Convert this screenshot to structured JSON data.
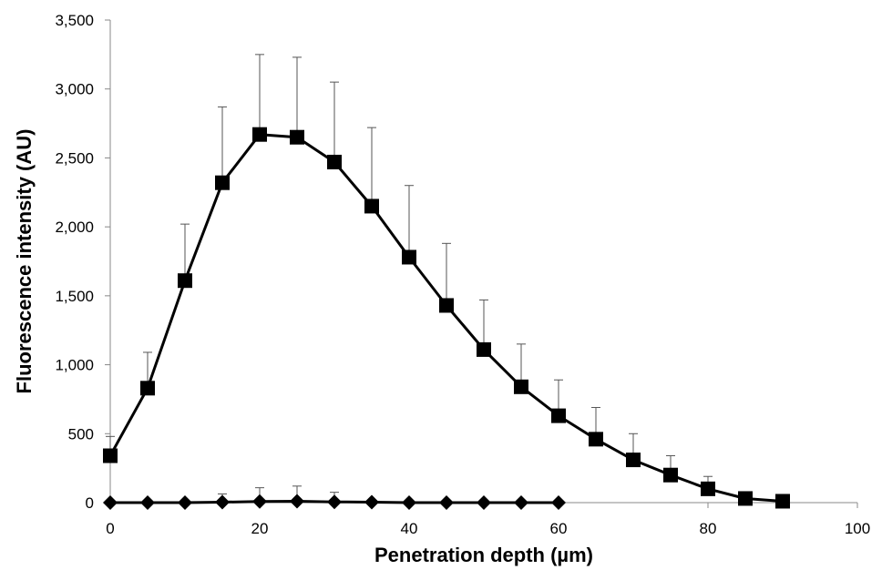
{
  "chart_data": {
    "type": "line",
    "title": "",
    "xlabel": "Penetration depth (µm)",
    "ylabel": "Fluorescence intensity (AU)",
    "xlim": [
      0,
      100
    ],
    "ylim": [
      0,
      3500
    ],
    "x_ticks": [
      0,
      20,
      40,
      60,
      80,
      100
    ],
    "x_tick_labels": [
      "0",
      "20",
      "40",
      "60",
      "80",
      "100"
    ],
    "y_ticks": [
      0,
      500,
      1000,
      1500,
      2000,
      2500,
      3000,
      3500
    ],
    "y_tick_labels": [
      "0",
      "500",
      "1,000",
      "1,500",
      "2,000",
      "2,500",
      "3,000",
      "3,500"
    ],
    "grid": false,
    "legend": "none",
    "series": [
      {
        "marker": "square",
        "color": "#000000",
        "x": [
          0,
          5,
          10,
          15,
          20,
          25,
          30,
          35,
          40,
          45,
          50,
          55,
          60,
          65,
          70,
          75,
          80,
          85,
          90
        ],
        "y": [
          340,
          830,
          1610,
          2320,
          2670,
          2650,
          2470,
          2150,
          1780,
          1430,
          1110,
          840,
          630,
          460,
          310,
          200,
          100,
          30,
          10
        ],
        "error_upper": [
          140,
          260,
          410,
          550,
          580,
          580,
          580,
          570,
          520,
          450,
          360,
          310,
          260,
          230,
          190,
          140,
          90,
          0,
          0
        ]
      },
      {
        "marker": "diamond",
        "color": "#000000",
        "x": [
          0,
          5,
          10,
          15,
          20,
          25,
          30,
          35,
          40,
          45,
          50,
          55,
          60
        ],
        "y": [
          0,
          0,
          0,
          3,
          8,
          10,
          5,
          3,
          0,
          0,
          0,
          0,
          0
        ],
        "error_upper": [
          0,
          0,
          0,
          60,
          100,
          110,
          70,
          0,
          0,
          0,
          0,
          0,
          0
        ]
      }
    ]
  }
}
